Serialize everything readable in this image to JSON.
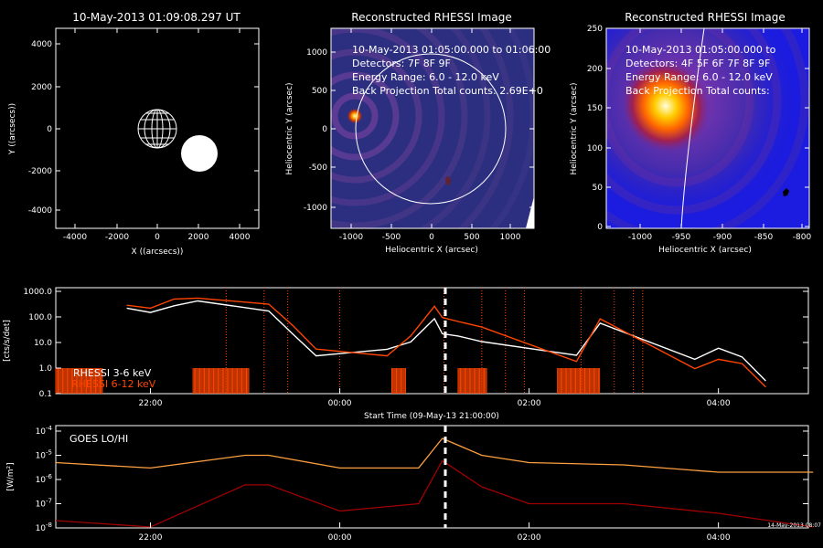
{
  "locator": {
    "title": "10-May-2013 01:09:08.297 UT",
    "xlabel": "X ((arcsecs))",
    "ylabel": "Y ((arcsecs))",
    "xticks": [
      "-4000",
      "-2000",
      "0",
      "2000",
      "4000"
    ],
    "yticks": [
      "4000",
      "2000",
      "0",
      "-2000",
      "-4000"
    ]
  },
  "image1": {
    "title": "Reconstructed RHESSI Image",
    "line1": "10-May-2013 01:05:00.000 to 01:06:00",
    "line2": "Detectors: 7F 8F 9F",
    "line3": "Energy Range: 6.0 - 12.0 keV",
    "line4": "Back Projection     Total counts: 2.69E+0",
    "xlabel": "Heliocentric X (arcsec)",
    "ylabel": "Heliocentric Y (arcsec)",
    "xticks": [
      "-1000",
      "-500",
      "0",
      "500",
      "1000"
    ],
    "yticks": [
      "1000",
      "500",
      "0",
      "-500",
      "-1000"
    ]
  },
  "image2": {
    "title": "Reconstructed RHESSI Image",
    "line1": "10-May-2013 01:05:00.000 to",
    "line2": "Detectors: 4F 5F 6F 7F 8F 9F",
    "line3": "Energy Range: 6.0 - 12.0 keV",
    "line4": "Back Projection     Total counts:",
    "xlabel": "Heliocentric X (arcsec)",
    "ylabel": "Heliocentric Y (arcsec)",
    "xticks": [
      "-1000",
      "-950",
      "-900",
      "-850",
      "-800"
    ],
    "yticks": [
      "250",
      "200",
      "150",
      "100",
      "50",
      "0"
    ]
  },
  "rhessi": {
    "ylabel": "[cts/s/det]",
    "yticks": [
      "1000.0",
      "100.0",
      "10.0",
      "1.0",
      "0.1"
    ],
    "xticks": [
      "22:00",
      "00:00",
      "02:00",
      "04:00"
    ],
    "xlabel": "Start Time (09-May-13 21:00:00)",
    "legend1": "RHESSI  3-6 keV",
    "legend2": "RHESSI  6-12 keV",
    "color1": "#ffffff",
    "color2": "#ff4500"
  },
  "goes": {
    "label": "GOES LO/HI",
    "ylabel": "[W/m²]",
    "xticks": [
      "22:00",
      "00:00",
      "02:00",
      "04:00"
    ],
    "stamp": "14-May-2013 08:07",
    "color_lo": "#ffa040",
    "color_hi": "#a00000"
  },
  "chart_data": [
    {
      "type": "line",
      "title": "",
      "ylabel": "[cts/s/det]",
      "xlabel": "Start Time (09-May-13 21:00:00)",
      "yscale": "log",
      "ylim": [
        0.1,
        1000
      ],
      "x": [
        "21:45",
        "22:00",
        "22:15",
        "22:30",
        "23:15",
        "23:30",
        "23:45",
        "00:30",
        "00:45",
        "01:00",
        "01:05",
        "01:15",
        "01:30",
        "02:30",
        "02:45",
        "03:45",
        "04:00",
        "04:15",
        "04:30"
      ],
      "series": [
        {
          "name": "RHESSI  3-6 keV",
          "values": [
            200,
            150,
            300,
            400,
            180,
            20,
            3,
            6,
            10,
            90,
            20,
            18,
            12,
            3,
            60,
            2,
            6,
            3,
            0.3
          ]
        },
        {
          "name": "RHESSI  6-12 keV",
          "values": [
            300,
            200,
            500,
            600,
            300,
            50,
            5,
            3,
            20,
            250,
            100,
            60,
            40,
            2,
            80,
            1,
            2,
            1.5,
            0.2
          ]
        }
      ]
    },
    {
      "type": "line",
      "title": "",
      "ylabel": "[W/m²]",
      "yscale": "log",
      "ylim": [
        1e-08,
        0.0001
      ],
      "x": [
        "21:00",
        "22:00",
        "23:00",
        "23:15",
        "00:00",
        "00:50",
        "01:05",
        "01:30",
        "02:00",
        "03:00",
        "04:00",
        "05:00"
      ],
      "series": [
        {
          "name": "GOES LO",
          "values": [
            5e-06,
            3e-06,
            1e-05,
            1e-05,
            3e-06,
            3e-06,
            5e-05,
            1e-05,
            5e-06,
            4e-06,
            2e-06,
            2e-06
          ]
        },
        {
          "name": "GOES HI",
          "values": [
            2e-08,
            1e-08,
            6e-07,
            6e-07,
            5e-08,
            1e-07,
            6e-06,
            5e-07,
            1e-07,
            1e-07,
            4e-08,
            1e-08
          ]
        }
      ]
    }
  ]
}
